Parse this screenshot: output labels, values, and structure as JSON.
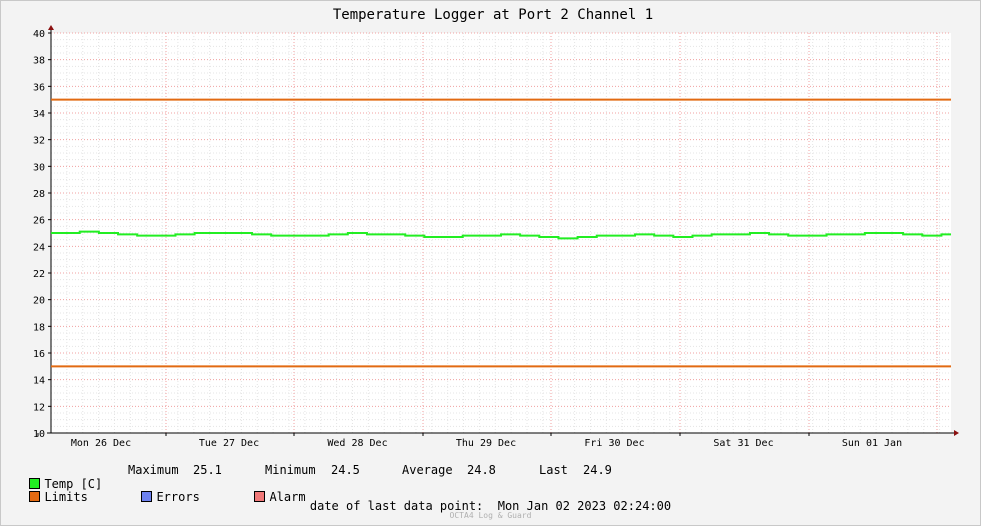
{
  "chart_data": {
    "type": "line",
    "title": "Temperature Logger at Port 2 Channel 1",
    "ylim": [
      10,
      40
    ],
    "ytick_labels": [
      "10",
      "12",
      "14",
      "16",
      "18",
      "20",
      "22",
      "24",
      "26",
      "28",
      "30",
      "32",
      "34",
      "36",
      "38",
      "40"
    ],
    "x_day_labels": [
      "Mon 26 Dec",
      "Tue 27 Dec",
      "Wed 28 Dec",
      "Thu 29 Dec",
      "Fri 30 Dec",
      "Sat 31 Dec",
      "Sun 01 Jan"
    ],
    "limits": [
      35,
      15
    ],
    "series": [
      {
        "name": "Temp [C]",
        "color": "#22ee22",
        "values": [
          25.0,
          25.0,
          25.1,
          25.0,
          24.9,
          24.8,
          24.8,
          24.9,
          25.0,
          25.0,
          25.0,
          24.9,
          24.8,
          24.8,
          24.8,
          24.9,
          25.0,
          24.9,
          24.9,
          24.8,
          24.7,
          24.7,
          24.8,
          24.8,
          24.9,
          24.8,
          24.7,
          24.6,
          24.7,
          24.8,
          24.8,
          24.9,
          24.8,
          24.7,
          24.8,
          24.9,
          24.9,
          25.0,
          24.9,
          24.8,
          24.8,
          24.9,
          24.9,
          25.0,
          25.0,
          24.9,
          24.8,
          24.9
        ]
      },
      {
        "name": "Limits",
        "color": "#e26a12"
      }
    ]
  },
  "legend": {
    "temp_label": "Temp [C]",
    "temp_color": "#22ee22",
    "limits_label": "Limits",
    "limits_color": "#e26a12",
    "errors_label": "Errors",
    "errors_color": "#6e82f0",
    "alarm_label": "Alarm",
    "alarm_color": "#f07878"
  },
  "stats": {
    "max_label": "Maximum",
    "max_value": "25.1",
    "min_label": "Minimum",
    "min_value": "24.5",
    "avg_label": "Average",
    "avg_value": "24.8",
    "last_label": "Last",
    "last_value": "24.9"
  },
  "footer": {
    "last_point": "date of last data point:  Mon Jan 02 2023 02:24:00",
    "watermark": "OCTA4 Log & Guard"
  }
}
